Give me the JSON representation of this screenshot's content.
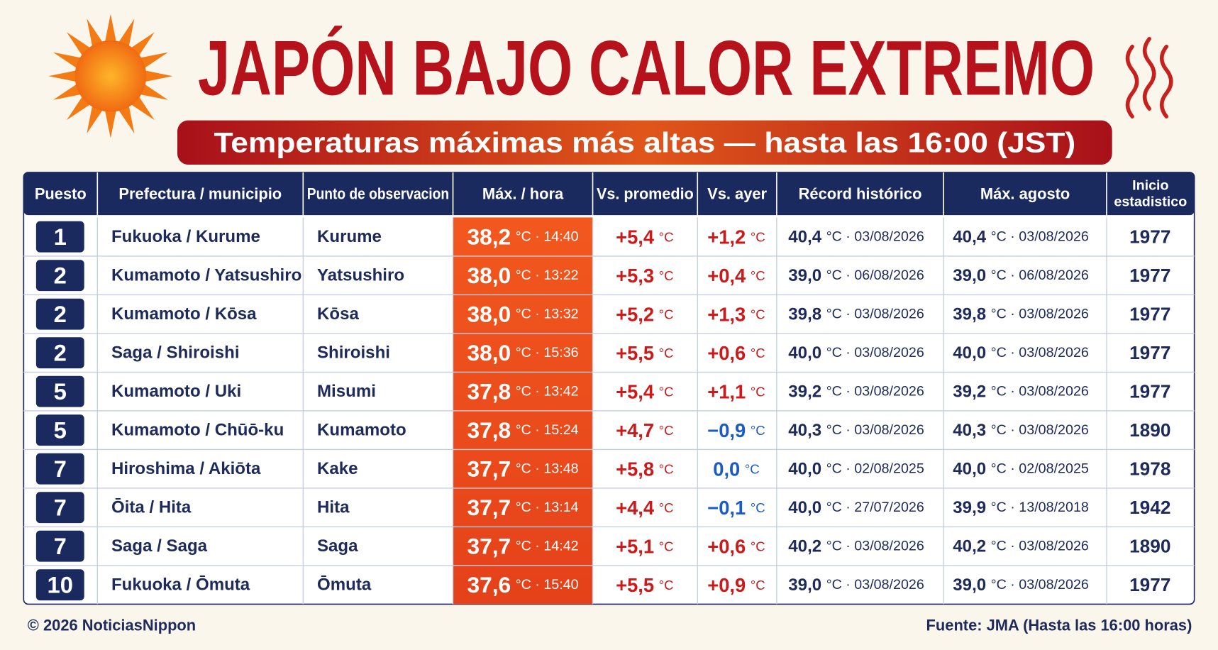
{
  "header": {
    "title": "JAPÓN BAJO CALOR EXTREMO",
    "subtitle": "Temperaturas máximas más altas — hasta las 16:00 (JST)"
  },
  "table": {
    "columns": [
      "Puesto",
      "Prefectura / municipio",
      "Punto de observacion",
      "Máx. / hora",
      "Vs. promedio",
      "Vs. ayer",
      "Récord histórico",
      "Máx. agosto",
      [
        "Inicio",
        "estadistico"
      ]
    ],
    "rows": [
      {
        "rank": "1",
        "prefecture": "Fukuoka / Kurume",
        "station": "Kurume",
        "max": [
          "38,2",
          "°C · 14:40"
        ],
        "vs_avg": [
          "+5,4",
          "°C"
        ],
        "vs_yesterday": [
          "+1,2",
          "°C"
        ],
        "record": [
          "40,4",
          "°C · 03/08/2026"
        ],
        "august": [
          "40,4",
          "°C · 03/08/2026"
        ],
        "since": "1977"
      },
      {
        "rank": "2",
        "prefecture": "Kumamoto / Yatsushiro",
        "station": "Yatsushiro",
        "max": [
          "38,0",
          "°C · 13:22"
        ],
        "vs_avg": [
          "+5,3",
          "°C"
        ],
        "vs_yesterday": [
          "+0,4",
          "°C"
        ],
        "record": [
          "39,0",
          "°C · 06/08/2026"
        ],
        "august": [
          "39,0",
          "°C · 06/08/2026"
        ],
        "since": "1977"
      },
      {
        "rank": "2",
        "prefecture": "Kumamoto / Kōsa",
        "station": "Kōsa",
        "max": [
          "38,0",
          "°C · 13:32"
        ],
        "vs_avg": [
          "+5,2",
          "°C"
        ],
        "vs_yesterday": [
          "+1,3",
          "°C"
        ],
        "record": [
          "39,8",
          "°C · 03/08/2026"
        ],
        "august": [
          "39,8",
          "°C · 03/08/2026"
        ],
        "since": "1977"
      },
      {
        "rank": "2",
        "prefecture": "Saga / Shiroishi",
        "station": "Shiroishi",
        "max": [
          "38,0",
          "°C · 15:36"
        ],
        "vs_avg": [
          "+5,5",
          "°C"
        ],
        "vs_yesterday": [
          "+0,6",
          "°C"
        ],
        "record": [
          "40,0",
          "°C · 03/08/2026"
        ],
        "august": [
          "40,0",
          "°C · 03/08/2026"
        ],
        "since": "1977"
      },
      {
        "rank": "5",
        "prefecture": "Kumamoto / Uki",
        "station": "Misumi",
        "max": [
          "37,8",
          "°C · 13:42"
        ],
        "vs_avg": [
          "+5,4",
          "°C"
        ],
        "vs_yesterday": [
          "+1,1",
          "°C"
        ],
        "record": [
          "39,2",
          "°C · 03/08/2026"
        ],
        "august": [
          "39,2",
          "°C · 03/08/2026"
        ],
        "since": "1977"
      },
      {
        "rank": "5",
        "prefecture": "Kumamoto / Chūō-ku",
        "station": "Kumamoto",
        "max": [
          "37,8",
          "°C · 15:24"
        ],
        "vs_avg": [
          "+4,7",
          "°C"
        ],
        "vs_yesterday": [
          "−0,9",
          "°C"
        ],
        "record": [
          "40,3",
          "°C · 03/08/2026"
        ],
        "august": [
          "40,3",
          "°C · 03/08/2026"
        ],
        "since": "1890"
      },
      {
        "rank": "7",
        "prefecture": "Hiroshima / Akiōta",
        "station": "Kake",
        "max": [
          "37,7",
          "°C · 13:48"
        ],
        "vs_avg": [
          "+5,8",
          "°C"
        ],
        "vs_yesterday": [
          "0,0",
          "°C"
        ],
        "record": [
          "40,0",
          "°C · 02/08/2025"
        ],
        "august": [
          "40,0",
          "°C · 02/08/2025"
        ],
        "since": "1978"
      },
      {
        "rank": "7",
        "prefecture": "Ōita / Hita",
        "station": "Hita",
        "max": [
          "37,7",
          "°C · 13:14"
        ],
        "vs_avg": [
          "+4,4",
          "°C"
        ],
        "vs_yesterday": [
          "−0,1",
          "°C"
        ],
        "record": [
          "40,0",
          "°C · 27/07/2026"
        ],
        "august": [
          "39,9",
          "°C · 13/08/2018"
        ],
        "since": "1942"
      },
      {
        "rank": "7",
        "prefecture": "Saga / Saga",
        "station": "Saga",
        "max": [
          "37,7",
          "°C · 14:42"
        ],
        "vs_avg": [
          "+5,1",
          "°C"
        ],
        "vs_yesterday": [
          "+0,6",
          "°C"
        ],
        "record": [
          "40,2",
          "°C · 03/08/2026"
        ],
        "august": [
          "40,2",
          "°C · 03/08/2026"
        ],
        "since": "1890"
      },
      {
        "rank": "10",
        "prefecture": "Fukuoka / Ōmuta",
        "station": "Ōmuta",
        "max": [
          "37,6",
          "°C · 15:40"
        ],
        "vs_avg": [
          "+5,5",
          "°C"
        ],
        "vs_yesterday": [
          "+0,9",
          "°C"
        ],
        "record": [
          "39,0",
          "°C · 03/08/2026"
        ],
        "august": [
          "39,0",
          "°C · 03/08/2026"
        ],
        "since": "1977"
      }
    ]
  },
  "footer": {
    "copyright": "© 2026 NoticiasNippon",
    "source": "Fuente: JMA (Hasta las 16:00 horas)"
  }
}
